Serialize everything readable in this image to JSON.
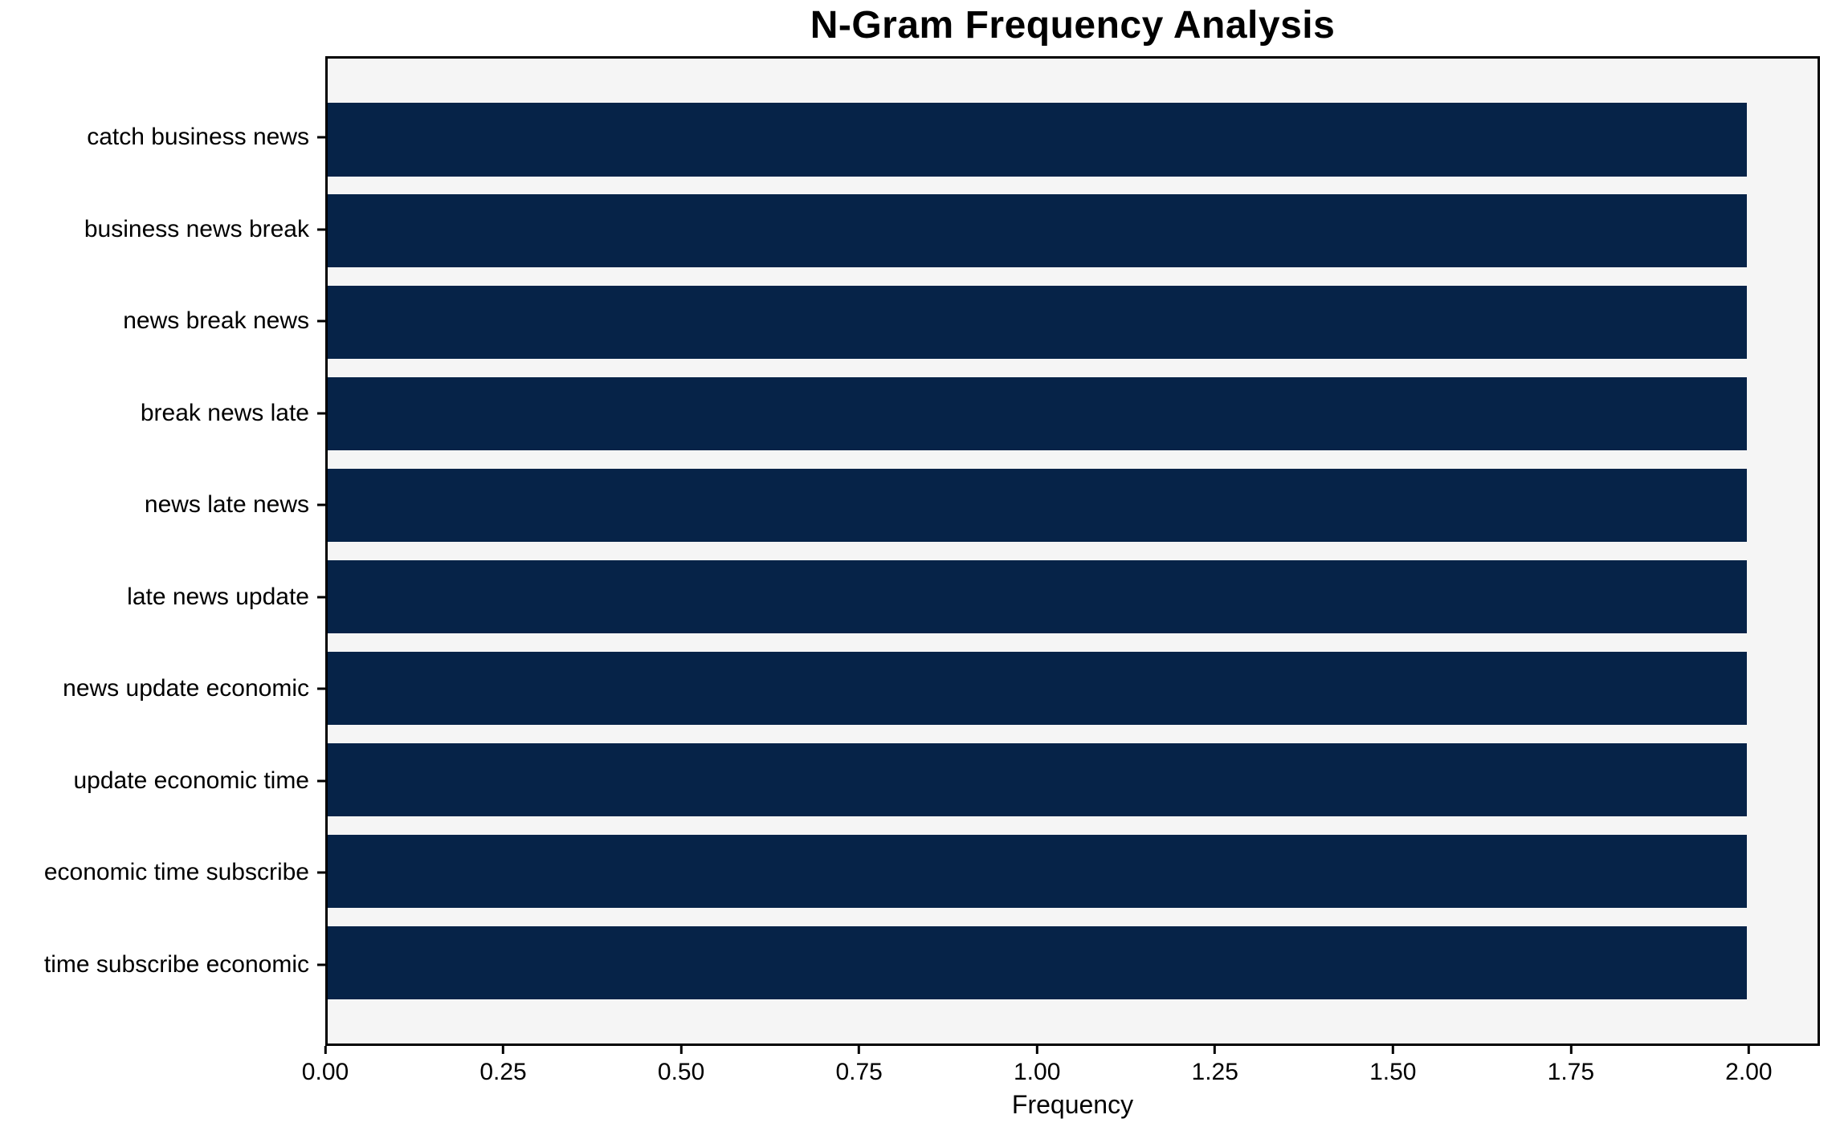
{
  "chart_data": {
    "type": "bar",
    "orientation": "horizontal",
    "title": "N-Gram Frequency Analysis",
    "xlabel": "Frequency",
    "ylabel": "",
    "categories": [
      "catch business news",
      "business news break",
      "news break news",
      "break news late",
      "news late news",
      "late news update",
      "news update economic",
      "update economic time",
      "economic time subscribe",
      "time subscribe economic"
    ],
    "values": [
      2,
      2,
      2,
      2,
      2,
      2,
      2,
      2,
      2,
      2
    ],
    "xlim": [
      0,
      2.1
    ],
    "xticks": [
      {
        "value": 0.0,
        "label": "0.00"
      },
      {
        "value": 0.25,
        "label": "0.25"
      },
      {
        "value": 0.5,
        "label": "0.50"
      },
      {
        "value": 0.75,
        "label": "0.75"
      },
      {
        "value": 1.0,
        "label": "1.00"
      },
      {
        "value": 1.25,
        "label": "1.25"
      },
      {
        "value": 1.5,
        "label": "1.50"
      },
      {
        "value": 1.75,
        "label": "1.75"
      },
      {
        "value": 2.0,
        "label": "2.00"
      }
    ],
    "grid": false,
    "legend": null,
    "colors": {
      "bar": "#062348",
      "plot_background": "#f5f5f5",
      "figure_background": "#ffffff",
      "spine": "#000000",
      "text": "#000000"
    }
  }
}
